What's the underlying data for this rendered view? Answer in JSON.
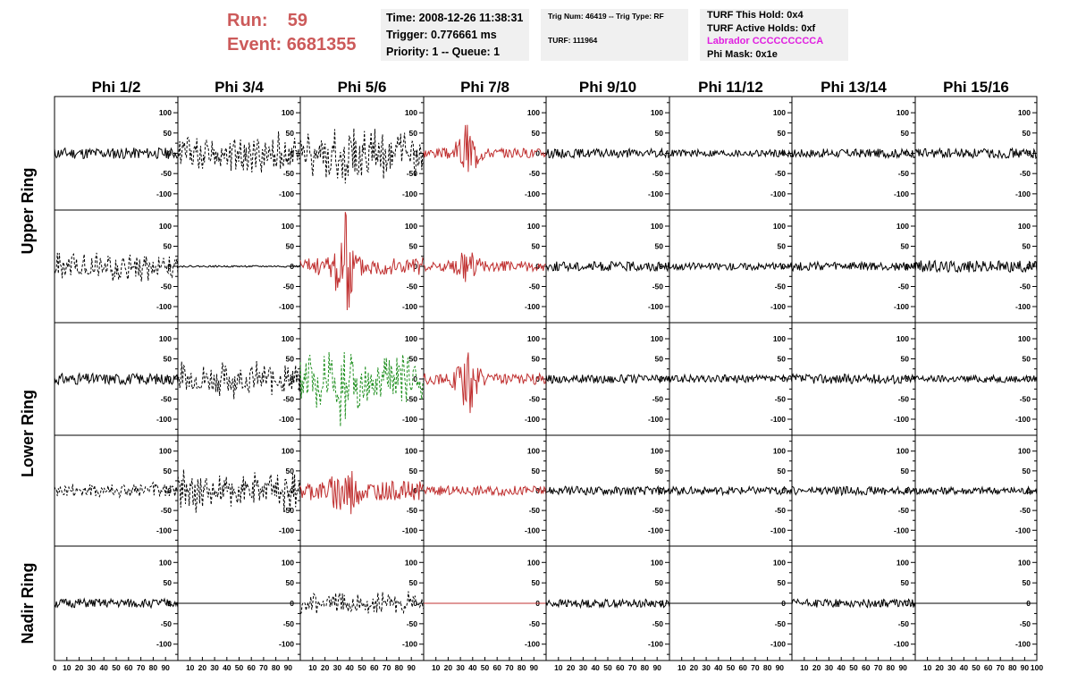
{
  "header": {
    "run_label": "Run:",
    "run_value": "59",
    "event_label": "Event:",
    "event_value": "6681355",
    "time": "Time: 2008-12-26 11:38:31",
    "trigger": "Trigger: 0.776661 ms",
    "priority": "Priority: 1 -- Queue: 1",
    "trig_num": "Trig Num: 46419 -- Trig Type: RF",
    "turf": "TURF: 111964",
    "turf_hold": "TURF This Hold: 0x4",
    "turf_active": "TURF Active Holds: 0xf",
    "labrador": "Labrador CCCCCCCCCA",
    "phi_mask": "Phi Mask: 0x1e"
  },
  "colors": {
    "header_red": "#cc5a5a",
    "labrador_magenta": "#e020e0",
    "trace_black": "#000000",
    "trace_red": "#c03030",
    "trace_green": "#209020",
    "box_bg": "#f0f0f0"
  },
  "chart_data": {
    "type": "line",
    "columns": [
      "Phi 1/2",
      "Phi 3/4",
      "Phi 5/6",
      "Phi 7/8",
      "Phi 9/10",
      "Phi 11/12",
      "Phi 13/14",
      "Phi 15/16"
    ],
    "rows": [
      "Upper Ring",
      "Upper Ring",
      "Lower Ring",
      "Lower Ring",
      "Nadir Ring"
    ],
    "row_labels": [
      {
        "text": "Upper Ring"
      },
      {
        "text": "Lower Ring"
      },
      {
        "text": "Nadir Ring"
      }
    ],
    "xlim": [
      0,
      100
    ],
    "ylim": [
      -140,
      140
    ],
    "y_ticks": [
      -100,
      -50,
      0,
      50,
      100
    ],
    "x_tick_labels": [
      "0",
      "10",
      "20",
      "30",
      "40",
      "50",
      "60",
      "70",
      "80",
      "90",
      "100"
    ],
    "panels": [
      [
        {
          "color": "black",
          "style": "solid",
          "amp": 14,
          "seed": 11
        },
        {
          "color": "black",
          "style": "dashed",
          "amp": 38,
          "seed": 12
        },
        {
          "color": "black",
          "style": "dashed",
          "amp": 42,
          "seed": 13,
          "burst": 90
        },
        {
          "color": "red",
          "style": "solid",
          "amp": 12,
          "seed": 14,
          "burst": 75
        },
        {
          "color": "black",
          "style": "solid",
          "amp": 11,
          "seed": 15
        },
        {
          "color": "black",
          "style": "solid",
          "amp": 9,
          "seed": 16
        },
        {
          "color": "black",
          "style": "solid",
          "amp": 11,
          "seed": 17
        },
        {
          "color": "black",
          "style": "solid",
          "amp": 12,
          "seed": 18
        }
      ],
      [
        {
          "color": "black",
          "style": "dashed",
          "amp": 28,
          "seed": 21
        },
        {
          "color": "black",
          "style": "solid",
          "amp": 2,
          "seed": 22
        },
        {
          "color": "red",
          "style": "solid",
          "amp": 22,
          "seed": 23,
          "burst": 140
        },
        {
          "color": "red",
          "style": "solid",
          "amp": 13,
          "seed": 24,
          "burst": 50
        },
        {
          "color": "black",
          "style": "solid",
          "amp": 12,
          "seed": 25
        },
        {
          "color": "black",
          "style": "solid",
          "amp": 9,
          "seed": 26
        },
        {
          "color": "black",
          "style": "solid",
          "amp": 11,
          "seed": 27
        },
        {
          "color": "black",
          "style": "solid",
          "amp": 15,
          "seed": 28
        }
      ],
      [
        {
          "color": "black",
          "style": "solid",
          "amp": 14,
          "seed": 31
        },
        {
          "color": "black",
          "style": "dashed",
          "amp": 34,
          "seed": 32
        },
        {
          "color": "green",
          "style": "dashed",
          "amp": 52,
          "seed": 33,
          "burst": 100
        },
        {
          "color": "red",
          "style": "solid",
          "amp": 14,
          "seed": 34,
          "burst": 90
        },
        {
          "color": "black",
          "style": "solid",
          "amp": 11,
          "seed": 35
        },
        {
          "color": "black",
          "style": "solid",
          "amp": 10,
          "seed": 36
        },
        {
          "color": "black",
          "style": "solid",
          "amp": 12,
          "seed": 37
        },
        {
          "color": "black",
          "style": "solid",
          "amp": 9,
          "seed": 38
        }
      ],
      [
        {
          "color": "black",
          "style": "dashed",
          "amp": 16,
          "seed": 41
        },
        {
          "color": "black",
          "style": "dashed",
          "amp": 40,
          "seed": 42
        },
        {
          "color": "red",
          "style": "solid",
          "amp": 24,
          "seed": 43,
          "burst": 95
        },
        {
          "color": "red",
          "style": "solid",
          "amp": 12,
          "seed": 44
        },
        {
          "color": "black",
          "style": "solid",
          "amp": 11,
          "seed": 45
        },
        {
          "color": "black",
          "style": "solid",
          "amp": 10,
          "seed": 46
        },
        {
          "color": "black",
          "style": "solid",
          "amp": 11,
          "seed": 47
        },
        {
          "color": "black",
          "style": "solid",
          "amp": 10,
          "seed": 48
        }
      ],
      [
        {
          "color": "black",
          "style": "solid",
          "amp": 11,
          "seed": 51
        },
        {
          "color": "black",
          "style": "solid",
          "amp": 0,
          "seed": 52
        },
        {
          "color": "black",
          "style": "dashed",
          "amp": 22,
          "seed": 53
        },
        {
          "color": "red",
          "style": "solid",
          "amp": 0,
          "seed": 54
        },
        {
          "color": "black",
          "style": "solid",
          "amp": 10,
          "seed": 55
        },
        {
          "color": "black",
          "style": "solid",
          "amp": 0,
          "seed": 56
        },
        {
          "color": "black",
          "style": "solid",
          "amp": 10,
          "seed": 57
        },
        {
          "color": "black",
          "style": "solid",
          "amp": 0,
          "seed": 58
        }
      ]
    ]
  }
}
